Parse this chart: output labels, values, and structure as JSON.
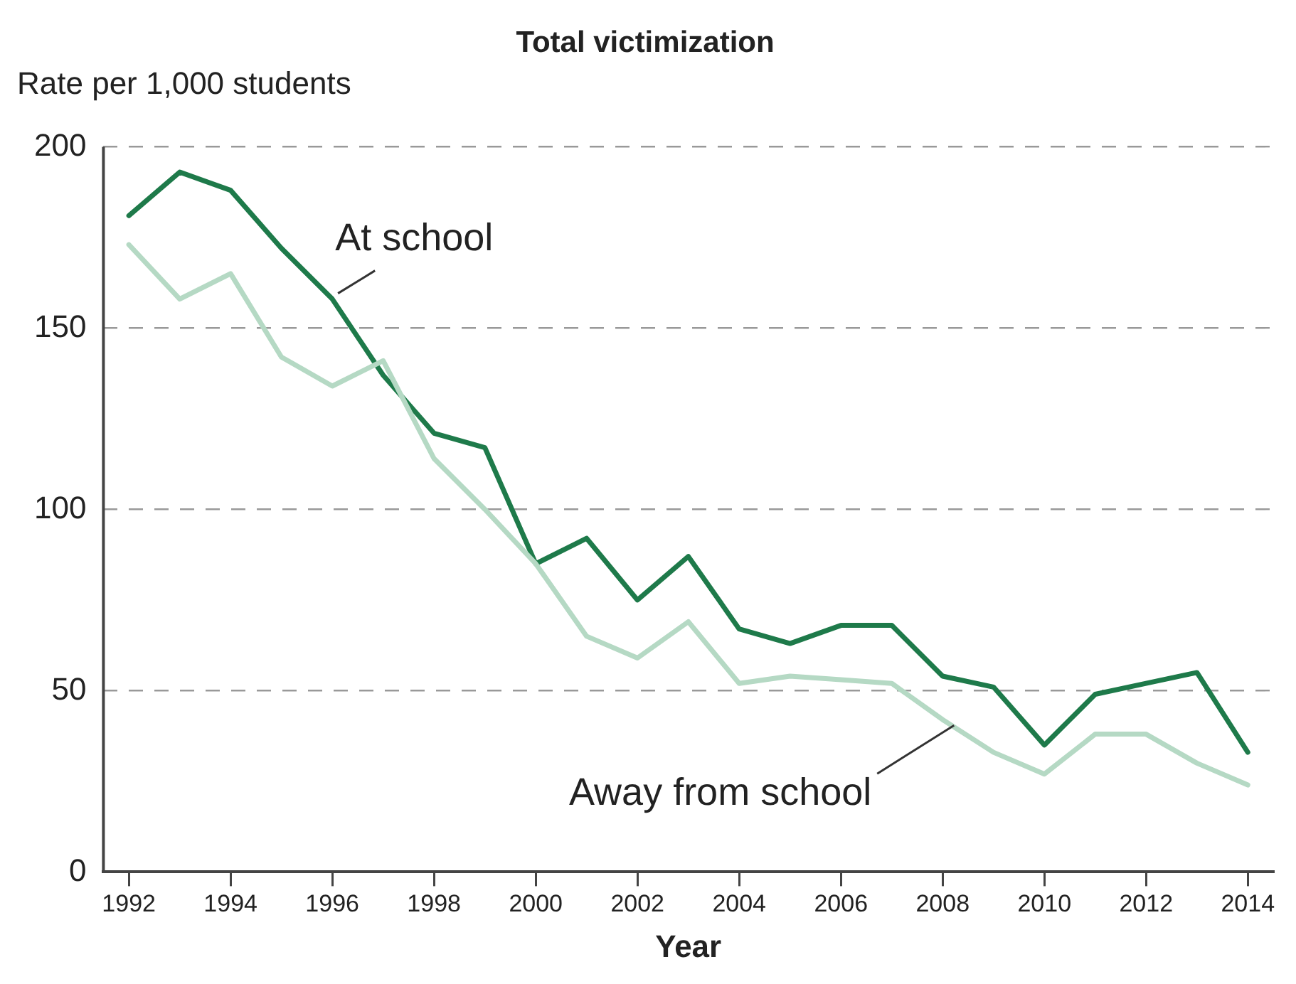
{
  "chart_data": {
    "type": "line",
    "title": "Total victimization",
    "ylabel": "Rate per 1,000 students",
    "xlabel": "Year",
    "x": [
      1992,
      1993,
      1994,
      1995,
      1996,
      1997,
      1998,
      1999,
      2000,
      2001,
      2002,
      2003,
      2004,
      2005,
      2006,
      2007,
      2008,
      2009,
      2010,
      2011,
      2012,
      2013,
      2014
    ],
    "series": [
      {
        "name": "At school",
        "color": "#1e7a4a",
        "values": [
          181,
          193,
          188,
          172,
          158,
          137,
          121,
          117,
          85,
          92,
          75,
          87,
          67,
          63,
          68,
          68,
          54,
          51,
          35,
          49,
          52,
          55,
          33
        ]
      },
      {
        "name": "Away from school",
        "color": "#b5d9c4",
        "values": [
          173,
          158,
          165,
          142,
          134,
          141,
          114,
          100,
          85,
          65,
          59,
          69,
          52,
          54,
          53,
          52,
          42,
          33,
          27,
          38,
          38,
          30,
          24
        ]
      }
    ],
    "xlim": [
      1991.5,
      2014.5
    ],
    "xticks": [
      1992,
      1994,
      1996,
      1998,
      2000,
      2002,
      2004,
      2006,
      2008,
      2010,
      2012,
      2014
    ],
    "ylim": [
      0,
      200
    ],
    "yticks": [
      0,
      50,
      100,
      150,
      200
    ],
    "grid": "y",
    "legend": false,
    "marker": "none",
    "line_style": "solid"
  }
}
